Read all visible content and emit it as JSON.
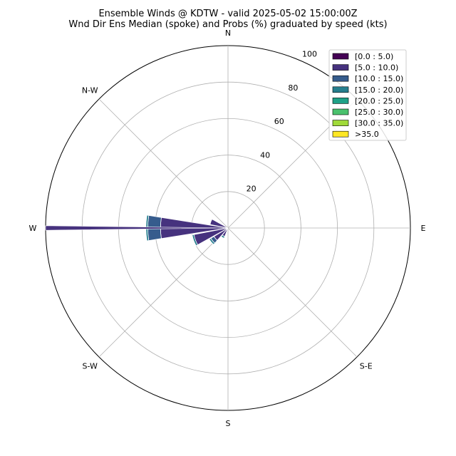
{
  "chart_data": {
    "type": "polar-bar",
    "title": "Ensemble Winds @ KDTW - valid 2025-05-02 15:00:00Z",
    "subtitle": "Wnd Dir Ens Median (spoke) and Probs (%) graduated by speed (kts)",
    "compass_labels": [
      {
        "label": "N",
        "deg": 0
      },
      {
        "label": "N-W",
        "deg": 315
      },
      {
        "label": "W",
        "deg": 270
      },
      {
        "label": "S-W",
        "deg": 225
      },
      {
        "label": "S",
        "deg": 180
      },
      {
        "label": "S-E",
        "deg": 135
      },
      {
        "label": "E",
        "deg": 90
      }
    ],
    "radial_ticks": [
      20,
      40,
      60,
      80,
      100
    ],
    "rlim": [
      0,
      100
    ],
    "grid": true,
    "legend_position": "top-right",
    "bins": [
      {
        "label": "[0.0 : 5.0)",
        "color": "#440154"
      },
      {
        "label": "[5.0 : 10.0)",
        "color": "#46327e"
      },
      {
        "label": "[10.0 : 15.0)",
        "color": "#365c8d"
      },
      {
        "label": "[15.0 : 20.0)",
        "color": "#277f8e"
      },
      {
        "label": "[20.0 : 25.0)",
        "color": "#1fa187"
      },
      {
        "label": "[25.0 : 30.0)",
        "color": "#4ac16d"
      },
      {
        "label": "[30.0 : 35.0)",
        "color": "#a0da39"
      },
      {
        "label": ">35.0",
        "color": "#fde725"
      }
    ],
    "sectors": [
      {
        "dir": 270,
        "cumulative": [
          0,
          37,
          44,
          45,
          45,
          45,
          45,
          45
        ]
      },
      {
        "dir": 250,
        "cumulative": [
          0,
          20,
          19,
          20,
          20,
          20,
          20,
          20
        ]
      },
      {
        "dir": 230,
        "cumulative": [
          0,
          9,
          11,
          12,
          12,
          12,
          12,
          12
        ]
      },
      {
        "dir": 290,
        "cumulative": [
          0,
          10,
          10,
          10,
          10,
          10,
          10,
          10
        ]
      },
      {
        "dir": 210,
        "cumulative": [
          0,
          5,
          5,
          6,
          6,
          6,
          6,
          6
        ]
      }
    ],
    "median_spoke": {
      "dir": 270,
      "value": 100
    }
  }
}
